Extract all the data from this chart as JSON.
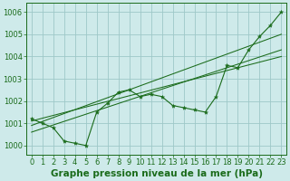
{
  "title": "Graphe pression niveau de la mer (hPa)",
  "bg_color": "#ceeaea",
  "grid_color": "#9ec8c8",
  "line_color": "#1a6b1a",
  "ylim": [
    999.6,
    1006.4
  ],
  "xlim": [
    -0.5,
    23.5
  ],
  "yticks": [
    1000,
    1001,
    1002,
    1003,
    1004,
    1005,
    1006
  ],
  "xticks": [
    0,
    1,
    2,
    3,
    4,
    5,
    6,
    7,
    8,
    9,
    10,
    11,
    12,
    13,
    14,
    15,
    16,
    17,
    18,
    19,
    20,
    21,
    22,
    23
  ],
  "pressure": [
    1001.2,
    1001.0,
    1000.8,
    1000.2,
    1000.1,
    1000.0,
    1001.5,
    1001.9,
    1002.4,
    1002.5,
    1002.2,
    1002.3,
    1002.2,
    1001.8,
    1001.7,
    1001.6,
    1001.5,
    1002.2,
    1003.6,
    1003.5,
    1004.3,
    1004.9,
    1005.4,
    1006.0
  ],
  "reg_lines": [
    {
      "x0": 0,
      "y0": 1000.9,
      "x1": 23,
      "y1": 1005.0
    },
    {
      "x0": 0,
      "y0": 1001.1,
      "x1": 23,
      "y1": 1004.0
    },
    {
      "x0": 0,
      "y0": 1000.6,
      "x1": 23,
      "y1": 1004.3
    }
  ],
  "xlabel_fontsize": 7.5,
  "tick_fontsize": 6.0,
  "figsize": [
    3.2,
    2.0
  ],
  "dpi": 100
}
